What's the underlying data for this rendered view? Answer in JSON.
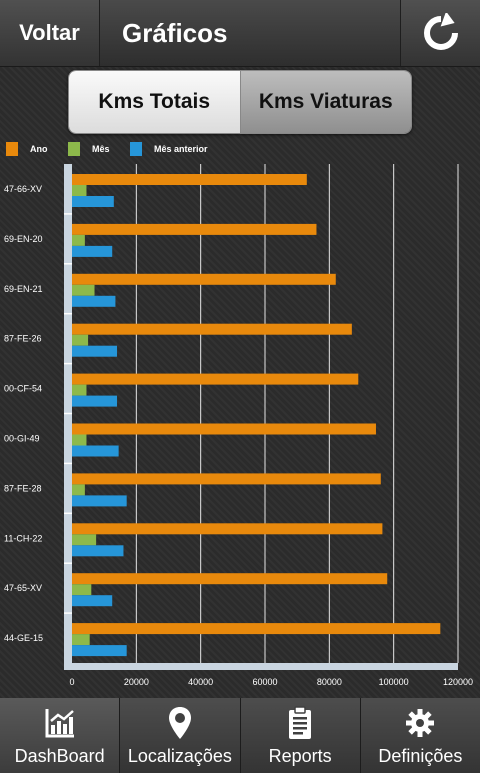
{
  "header": {
    "back_label": "Voltar",
    "title": "Gráficos",
    "refresh_icon": "refresh-icon"
  },
  "segments": [
    {
      "label": "Kms Totais",
      "selected": true
    },
    {
      "label": "Kms Viaturas",
      "selected": false
    }
  ],
  "legend": [
    {
      "label": "Ano",
      "color": "#e8890c"
    },
    {
      "label": "Mês",
      "color": "#8db94b"
    },
    {
      "label": "Mês anterior",
      "color": "#2696d9"
    }
  ],
  "chart_data": {
    "type": "bar",
    "orientation": "horizontal",
    "categories": [
      "47-66-XV",
      "69-EN-20",
      "69-EN-21",
      "87-FE-26",
      "00-CF-54",
      "00-GI-49",
      "87-FE-28",
      "11-CH-22",
      "47-65-XV",
      "44-GE-15"
    ],
    "series": [
      {
        "name": "Ano",
        "color": "#e8890c",
        "values": [
          73000,
          76000,
          82000,
          87000,
          89000,
          94500,
          96000,
          96500,
          98000,
          114500
        ]
      },
      {
        "name": "Mês",
        "color": "#8db94b",
        "values": [
          4500,
          4000,
          7000,
          5000,
          4500,
          4500,
          4000,
          7500,
          6000,
          5500
        ]
      },
      {
        "name": "Mês anterior",
        "color": "#2696d9",
        "values": [
          13000,
          12500,
          13500,
          14000,
          14000,
          14500,
          17000,
          16000,
          12500,
          17000
        ]
      }
    ],
    "xlim": [
      0,
      120000
    ],
    "xticks": [
      0,
      20000,
      40000,
      60000,
      80000,
      100000,
      120000
    ],
    "grid": true,
    "legend_position": "top-left"
  },
  "nav": [
    {
      "label": "DashBoard",
      "icon": "chart-icon",
      "active": true
    },
    {
      "label": "Localizações",
      "icon": "location-pin-icon",
      "active": false
    },
    {
      "label": "Reports",
      "icon": "clipboard-icon",
      "active": false
    },
    {
      "label": "Definições",
      "icon": "gear-icon",
      "active": false
    }
  ]
}
